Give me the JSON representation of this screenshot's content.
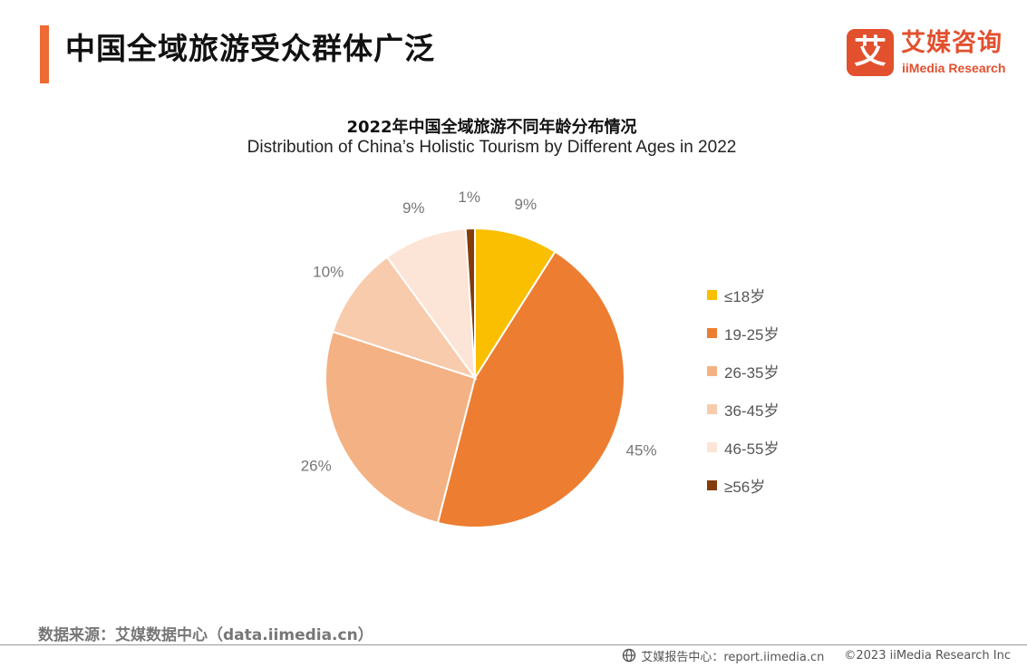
{
  "page": {
    "title": "中国全域旅游受众群体广泛",
    "source": "数据来源：艾媒数据中心（data.iimedia.cn）"
  },
  "logo": {
    "cn": "艾媒咨询",
    "en": "iiMedia Research",
    "mark": "艾"
  },
  "footer": {
    "report": "艾媒报告中心：report.iimedia.cn",
    "copyright": "©2023  iiMedia Research  Inc",
    "icon": "globe-icon"
  },
  "colors": {
    "accent": "#ee6a33",
    "brand": "#e2502e",
    "label": "#777777"
  },
  "chart_data": {
    "type": "pie",
    "title": "2022年中国全域旅游不同年龄分布情况",
    "subtitle": "Distribution of China’s Holistic Tourism by Different Ages in 2022",
    "legend_position": "right",
    "categories": [
      "≤18岁",
      "19-25岁",
      "26-35岁",
      "36-45岁",
      "46-55岁",
      "≥56岁"
    ],
    "values": [
      9,
      45,
      26,
      10,
      9,
      1
    ],
    "labels": [
      "9%",
      "45%",
      "26%",
      "10%",
      "9%",
      "1%"
    ],
    "colors": [
      "#f9bf00",
      "#ed7d31",
      "#f4b183",
      "#f8cbad",
      "#fce4d6",
      "#843c0c"
    ],
    "start_angle_deg": 0,
    "direction": "clockwise"
  }
}
